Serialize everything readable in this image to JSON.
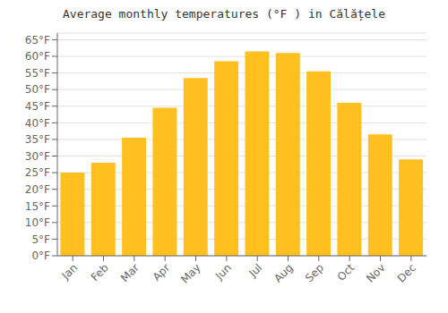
{
  "chart_data": {
    "type": "bar",
    "title": "Average monthly temperatures (°F ) in Călățele",
    "categories": [
      "Jan",
      "Feb",
      "Mar",
      "Apr",
      "May",
      "Jun",
      "Jul",
      "Aug",
      "Sep",
      "Oct",
      "Nov",
      "Dec"
    ],
    "values": [
      25.0,
      28.0,
      35.5,
      44.5,
      53.5,
      58.5,
      61.5,
      61.0,
      55.5,
      46.0,
      36.5,
      29.0
    ],
    "color": "#FFC020",
    "ylim": [
      0,
      67
    ],
    "yticks": [
      {
        "value": 0,
        "label": "0°F"
      },
      {
        "value": 5,
        "label": "5°F"
      },
      {
        "value": 10,
        "label": "10°F"
      },
      {
        "value": 15,
        "label": "15°F"
      },
      {
        "value": 20,
        "label": "20°F"
      },
      {
        "value": 25,
        "label": "25°F"
      },
      {
        "value": 30,
        "label": "30°F"
      },
      {
        "value": 35,
        "label": "35°F"
      },
      {
        "value": 40,
        "label": "40°F"
      },
      {
        "value": 45,
        "label": "45°F"
      },
      {
        "value": 50,
        "label": "50°F"
      },
      {
        "value": 55,
        "label": "55°F"
      },
      {
        "value": 60,
        "label": "60°F"
      },
      {
        "value": 65,
        "label": "65°F"
      }
    ],
    "grid": true
  }
}
